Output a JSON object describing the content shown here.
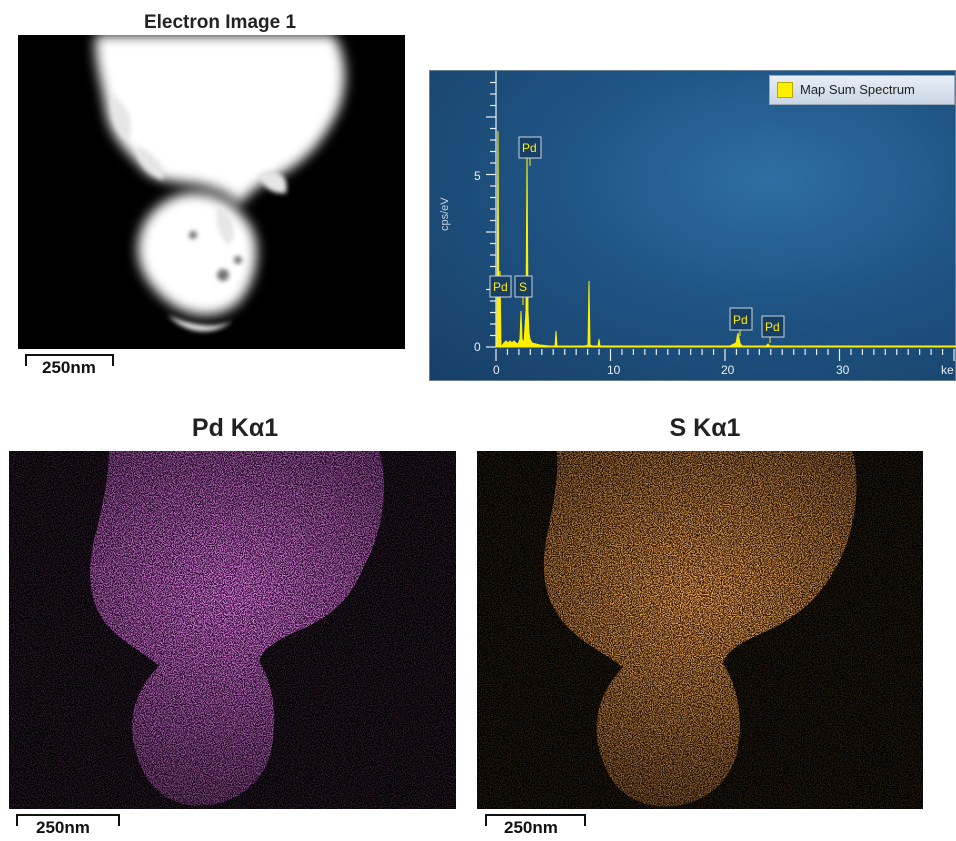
{
  "electron_image": {
    "title": "Electron Image 1",
    "scale_label": "250nm"
  },
  "spectrum": {
    "legend_label": "Map Sum Spectrum",
    "legend_color": "#ffee00",
    "ylabel": "cps/eV",
    "x_unit_partial": "ke",
    "x_ticks": [
      "0",
      "10",
      "20",
      "30"
    ],
    "y_ticks": [
      "0",
      "5"
    ],
    "peak_labels": [
      {
        "label": "Pd",
        "energy_kev": 0.3
      },
      {
        "label": "S",
        "energy_kev": 2.3
      },
      {
        "label": "Pd",
        "energy_kev": 2.84
      },
      {
        "label": "Pd",
        "energy_kev": 21.2
      },
      {
        "label": "Pd",
        "energy_kev": 23.8
      }
    ],
    "background_color": "#1f5484",
    "line_color": "#ffee00"
  },
  "map_pd": {
    "title": "Pd Kα1",
    "scale_label": "250nm",
    "color": "#c040c8"
  },
  "map_s": {
    "title": "S Kα1",
    "scale_label": "250nm",
    "color": "#e8701a"
  }
}
